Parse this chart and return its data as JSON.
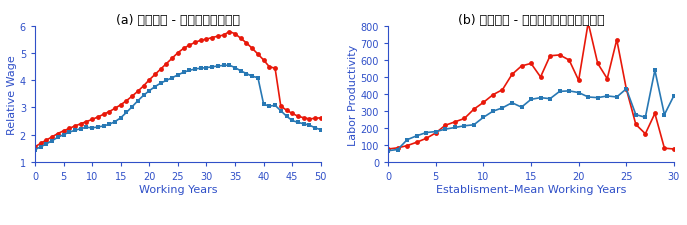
{
  "left_chart": {
    "xlabel": "Working Years",
    "ylabel": "Relative Wage",
    "xlim": [
      0,
      50
    ],
    "ylim": [
      1,
      6
    ],
    "yticks": [
      1,
      2,
      3,
      4,
      5,
      6
    ],
    "xticks": [
      0,
      5,
      10,
      15,
      20,
      25,
      30,
      35,
      40,
      45,
      50
    ],
    "caption": "(a) 就業年数 - 賃金プロファイル",
    "red_x": [
      0,
      1,
      2,
      3,
      4,
      5,
      6,
      7,
      8,
      9,
      10,
      11,
      12,
      13,
      14,
      15,
      16,
      17,
      18,
      19,
      20,
      21,
      22,
      23,
      24,
      25,
      26,
      27,
      28,
      29,
      30,
      31,
      32,
      33,
      34,
      35,
      36,
      37,
      38,
      39,
      40,
      41,
      42,
      43,
      44,
      45,
      46,
      47,
      48,
      49,
      50
    ],
    "red_y": [
      1.55,
      1.68,
      1.8,
      1.92,
      2.04,
      2.14,
      2.23,
      2.32,
      2.4,
      2.48,
      2.56,
      2.65,
      2.75,
      2.85,
      2.97,
      3.1,
      3.25,
      3.42,
      3.6,
      3.8,
      4.02,
      4.22,
      4.42,
      4.62,
      4.82,
      5.02,
      5.18,
      5.3,
      5.4,
      5.48,
      5.52,
      5.58,
      5.63,
      5.67,
      5.8,
      5.72,
      5.55,
      5.38,
      5.18,
      4.97,
      4.75,
      4.5,
      4.45,
      3.05,
      2.9,
      2.78,
      2.68,
      2.62,
      2.58,
      2.6,
      2.62
    ],
    "blue_x": [
      0,
      1,
      2,
      3,
      4,
      5,
      6,
      7,
      8,
      9,
      10,
      11,
      12,
      13,
      14,
      15,
      16,
      17,
      18,
      19,
      20,
      21,
      22,
      23,
      24,
      25,
      26,
      27,
      28,
      29,
      30,
      31,
      32,
      33,
      34,
      35,
      36,
      37,
      38,
      39,
      40,
      41,
      42,
      43,
      44,
      45,
      46,
      47,
      48,
      49,
      50
    ],
    "blue_y": [
      1.45,
      1.55,
      1.66,
      1.78,
      1.9,
      2.0,
      2.09,
      2.16,
      2.22,
      2.27,
      2.25,
      2.28,
      2.32,
      2.38,
      2.48,
      2.62,
      2.82,
      3.03,
      3.25,
      3.45,
      3.62,
      3.77,
      3.9,
      4.0,
      4.1,
      4.2,
      4.3,
      4.37,
      4.42,
      4.45,
      4.47,
      4.5,
      4.53,
      4.55,
      4.56,
      4.47,
      4.35,
      4.25,
      4.15,
      4.1,
      3.12,
      3.05,
      3.08,
      2.88,
      2.68,
      2.52,
      2.45,
      2.4,
      2.35,
      2.25,
      2.18
    ]
  },
  "right_chart": {
    "xlabel": "Establisment–Mean Working Years",
    "ylabel": "Labor Productivity",
    "xlim": [
      0,
      30
    ],
    "ylim": [
      0,
      800
    ],
    "yticks": [
      0,
      100,
      200,
      300,
      400,
      500,
      600,
      700,
      800
    ],
    "xticks": [
      0,
      5,
      10,
      15,
      20,
      25,
      30
    ],
    "caption": "(b) 就業年数 - 労働生産性プロファイル",
    "red_x": [
      0,
      1,
      2,
      3,
      4,
      5,
      6,
      7,
      8,
      9,
      10,
      11,
      12,
      13,
      14,
      15,
      16,
      17,
      18,
      19,
      20,
      21,
      22,
      23,
      24,
      25,
      26,
      27,
      28,
      29,
      30
    ],
    "red_y": [
      75,
      82,
      95,
      115,
      138,
      170,
      215,
      235,
      255,
      310,
      350,
      395,
      425,
      515,
      565,
      580,
      500,
      625,
      630,
      600,
      480,
      820,
      580,
      490,
      720,
      430,
      220,
      165,
      285,
      80,
      75
    ],
    "blue_x": [
      0,
      1,
      2,
      3,
      4,
      5,
      6,
      7,
      8,
      9,
      10,
      11,
      12,
      13,
      14,
      15,
      16,
      17,
      18,
      19,
      20,
      21,
      22,
      23,
      24,
      25,
      26,
      27,
      28,
      29,
      30
    ],
    "blue_y": [
      65,
      72,
      130,
      153,
      172,
      178,
      192,
      202,
      212,
      218,
      262,
      298,
      318,
      348,
      322,
      368,
      378,
      372,
      415,
      418,
      408,
      382,
      378,
      388,
      382,
      430,
      278,
      262,
      540,
      278,
      390
    ]
  },
  "red_color": "#e8180a",
  "blue_color": "#2878b4",
  "axis_label_color": "#3050c8",
  "tick_label_color": "#3050c8",
  "spine_color": "#3050c8",
  "caption_color": "#000000",
  "marker_size": 3.5,
  "linewidth": 1.2,
  "caption_fontsize": 9,
  "axis_label_fontsize": 8,
  "tick_fontsize": 7
}
